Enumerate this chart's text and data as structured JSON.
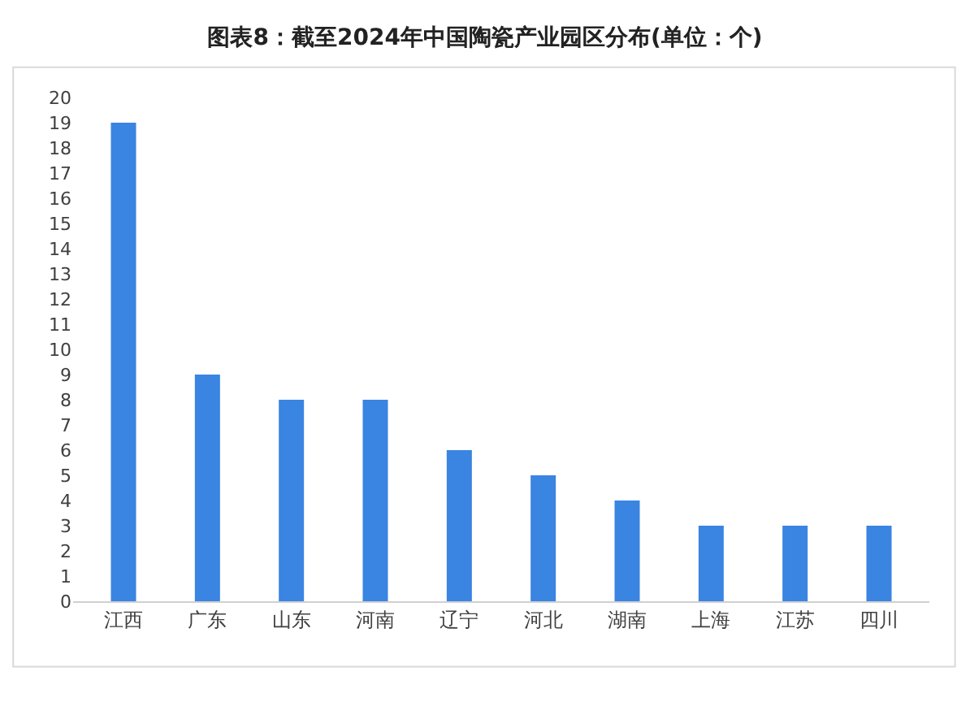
{
  "chart_data": {
    "type": "bar",
    "title": "图表8：截至2024年中国陶瓷产业园区分布(单位：个)",
    "categories": [
      "江西",
      "广东",
      "山东",
      "河南",
      "辽宁",
      "河北",
      "湖南",
      "上海",
      "江苏",
      "四川"
    ],
    "values": [
      19,
      9,
      8,
      8,
      6,
      5,
      4,
      3,
      3,
      3
    ],
    "color": "#3a84e2",
    "ylim": [
      0,
      20
    ],
    "yticks": [
      0,
      1,
      2,
      3,
      4,
      5,
      6,
      7,
      8,
      9,
      10,
      11,
      12,
      13,
      14,
      15,
      16,
      17,
      18,
      19,
      20
    ],
    "tick_labels": "xy"
  }
}
